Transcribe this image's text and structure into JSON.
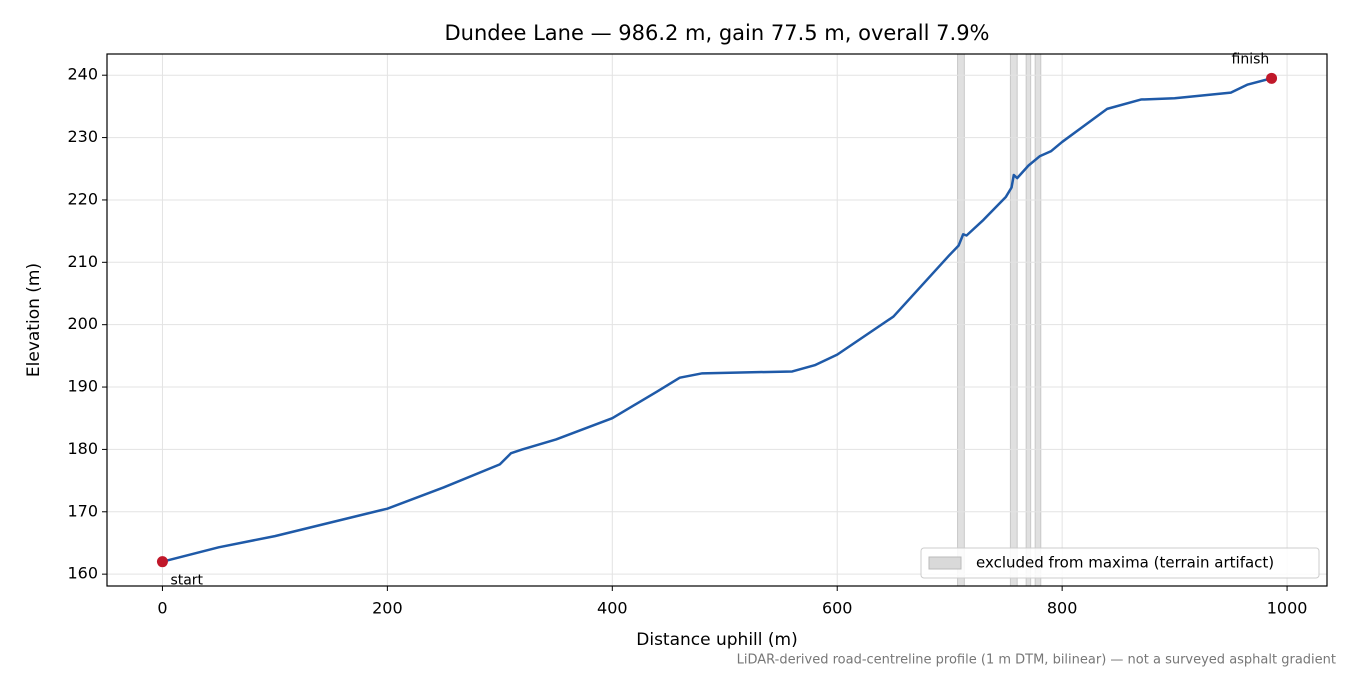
{
  "chart_data": {
    "type": "line",
    "title": "Dundee Lane — 986.2 m, gain 77.5 m, overall 7.9%",
    "xlabel": "Distance uphill (m)",
    "ylabel": "Elevation (m)",
    "note": "LiDAR-derived road-centreline profile (1 m DTM, bilinear) — not a surveyed asphalt gradient",
    "x": [
      0,
      50,
      100,
      150,
      200,
      250,
      300,
      310,
      320,
      350,
      400,
      440,
      460,
      480,
      560,
      580,
      600,
      650,
      700,
      708,
      712,
      715,
      730,
      750,
      755,
      757,
      760,
      770,
      780,
      790,
      800,
      840,
      870,
      900,
      950,
      965,
      986.2
    ],
    "values": [
      162.0,
      164.3,
      166.1,
      168.3,
      170.5,
      173.9,
      177.6,
      179.4,
      180.0,
      181.6,
      185.0,
      189.3,
      191.5,
      192.2,
      192.5,
      193.5,
      195.2,
      201.3,
      211.2,
      212.7,
      214.5,
      214.3,
      216.8,
      220.5,
      222.0,
      224.0,
      223.5,
      225.5,
      227.0,
      227.8,
      229.3,
      234.6,
      236.1,
      236.3,
      237.2,
      238.5,
      239.5
    ],
    "color": "#1f5aa8",
    "annotations": [
      {
        "text": "start",
        "x": 0,
        "y": 162.0
      },
      {
        "text": "finish",
        "x": 986.2,
        "y": 239.5
      }
    ],
    "marker_color": "#c0182a",
    "excluded": {
      "label": "excluded from maxima (terrain artifact)",
      "color": "#d9d9d9",
      "spans": [
        [
          707,
          713
        ],
        [
          754,
          760
        ],
        [
          768,
          772
        ],
        [
          776,
          781
        ]
      ]
    },
    "legend": "lower right",
    "xlim": [
      -49.3,
      1035.5
    ],
    "xticks": [
      0,
      200,
      400,
      600,
      800,
      1000
    ],
    "ylim": [
      158.1,
      243.4
    ],
    "yticks": [
      160,
      170,
      180,
      190,
      200,
      210,
      220,
      230,
      240
    ],
    "grid": true
  }
}
